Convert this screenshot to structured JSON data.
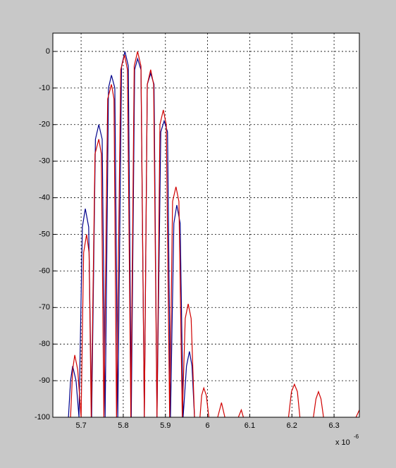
{
  "chart_data": {
    "type": "line",
    "xlim": [
      5.633,
      6.36
    ],
    "ylim": [
      -100,
      5
    ],
    "xticks": [
      5.7,
      5.8,
      5.9,
      6,
      6.1,
      6.2,
      6.3
    ],
    "yticks": [
      0,
      -10,
      -20,
      -30,
      -40,
      -50,
      -60,
      -70,
      -80,
      -90,
      -100
    ],
    "grid": true,
    "x_axis_multiplier": "x 10",
    "x_axis_exponent": "-6",
    "series": [
      {
        "color": "#00008b",
        "x": [
          5.67,
          5.675,
          5.68,
          5.688,
          5.695,
          5.703,
          5.71,
          5.718,
          5.725,
          5.734,
          5.742,
          5.75,
          5.757,
          5.765,
          5.772,
          5.78,
          5.787,
          5.796,
          5.804,
          5.812,
          5.819,
          5.827,
          5.834,
          5.842,
          5.85,
          5.857,
          5.865,
          5.873,
          5.88,
          5.889,
          5.897,
          5.905,
          5.912,
          5.92,
          5.927,
          5.935,
          5.942,
          5.95,
          5.957,
          5.963,
          5.969
        ],
        "values": [
          -100,
          -90,
          -86,
          -90,
          -100,
          -48,
          -43,
          -48,
          -100,
          -24,
          -20,
          -24,
          -100,
          -10,
          -6.5,
          -10,
          -100,
          -4,
          0,
          -4,
          -100,
          -5,
          -2,
          -5,
          -100,
          -9,
          -6,
          -9,
          -100,
          -22,
          -19,
          -22,
          -100,
          -47,
          -42,
          -47,
          -100,
          -86,
          -82,
          -86,
          -100
        ]
      },
      {
        "color": "#d00000",
        "x": [
          5.675,
          5.68,
          5.685,
          5.692,
          5.7,
          5.706,
          5.713,
          5.719,
          5.724,
          5.733,
          5.742,
          5.748,
          5.754,
          5.763,
          5.772,
          5.778,
          5.784,
          5.794,
          5.803,
          5.81,
          5.818,
          5.826,
          5.834,
          5.842,
          5.85,
          5.857,
          5.865,
          5.872,
          5.88,
          5.887,
          5.895,
          5.902,
          5.91,
          5.917,
          5.925,
          5.932,
          5.94,
          5.947,
          5.954,
          5.961,
          5.969,
          5.975,
          5.982,
          5.986,
          5.991,
          5.997,
          6.003,
          6.01,
          6.024,
          6.033,
          6.041,
          6.06,
          6.073,
          6.08,
          6.085,
          6.15,
          6.192,
          6.199,
          6.206,
          6.213,
          6.219,
          6.235,
          6.251,
          6.257,
          6.263,
          6.269,
          6.275,
          6.3,
          6.352,
          6.36
        ],
        "values": [
          -100,
          -87,
          -83,
          -87,
          -100,
          -55,
          -50,
          -55,
          -100,
          -28,
          -24,
          -28,
          -100,
          -13,
          -9,
          -13,
          -100,
          -5,
          -1,
          -5,
          -100,
          -4,
          0,
          -4,
          -100,
          -9,
          -5,
          -9,
          -100,
          -20,
          -16,
          -20,
          -100,
          -41,
          -37,
          -41,
          -100,
          -73,
          -69,
          -73,
          -100,
          null,
          -100,
          -94,
          -92,
          -94,
          -100,
          null,
          -100,
          -96,
          -100,
          null,
          -100,
          -98,
          -100,
          null,
          -100,
          -93,
          -91,
          -93,
          -100,
          null,
          -100,
          -95,
          -93,
          -95,
          -100,
          null,
          -100,
          -98
        ]
      }
    ]
  }
}
